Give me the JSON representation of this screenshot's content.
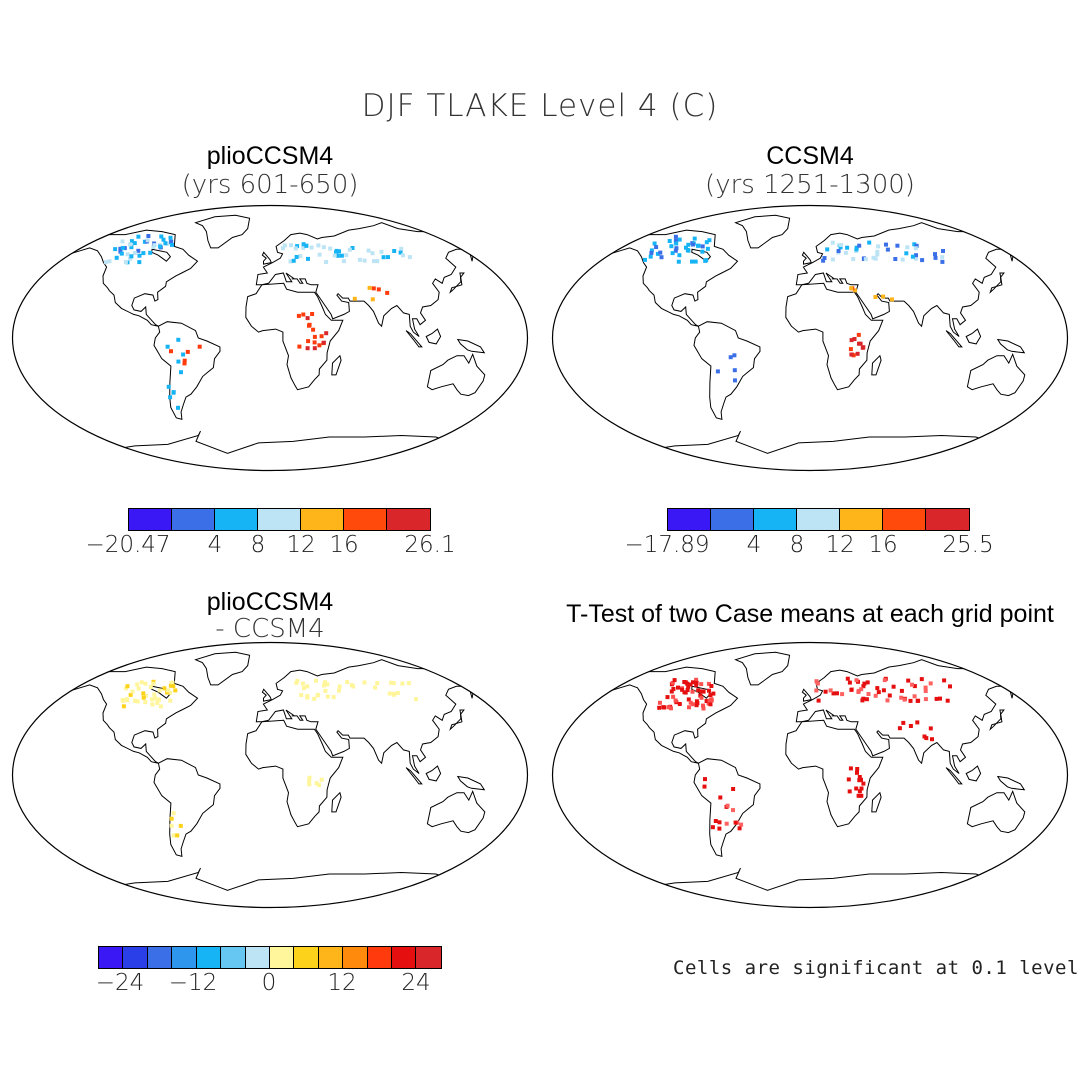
{
  "figure": {
    "title": "DJF TLAKE Level 4 (C)"
  },
  "panels": {
    "top_left": {
      "title": "plioCCSM4",
      "subtitle": "(yrs 601-650)",
      "colorbar": {
        "colors": [
          "#3a17f5",
          "#3a6fe8",
          "#17b4f5",
          "#bde4f5",
          "#fdb51a",
          "#ff4a0c",
          "#d8262b"
        ],
        "labels": [
          "-20.47",
          "4",
          "8",
          "12",
          "16",
          "26.1"
        ]
      }
    },
    "top_right": {
      "title": "CCSM4",
      "subtitle": "(yrs 1251-1300)",
      "colorbar": {
        "colors": [
          "#3a17f5",
          "#3a6fe8",
          "#17b4f5",
          "#bde4f5",
          "#fdb51a",
          "#ff4a0c",
          "#d8262b"
        ],
        "labels": [
          "-17.89",
          "4",
          "8",
          "12",
          "16",
          "25.5"
        ]
      }
    },
    "bottom_left": {
      "title": "plioCCSM4",
      "subtitle": "- CCSM4",
      "colorbar": {
        "colors": [
          "#3a17f5",
          "#2a3fe8",
          "#3a6fe8",
          "#2f96ee",
          "#17b4f5",
          "#66c8f2",
          "#bde4f5",
          "#fff59a",
          "#fdd21a",
          "#fdb51a",
          "#ff8a0c",
          "#ff3a0c",
          "#e60f10",
          "#d8262b"
        ],
        "labels": [
          "-24",
          "-12",
          "0",
          "12",
          "24"
        ]
      }
    },
    "bottom_right": {
      "title": "T-Test of two Case means at each grid point",
      "note": "Cells are significant at 0.1 level"
    }
  },
  "colors": {
    "cold": "#17b4f5",
    "cool": "#3a6fe8",
    "warm": "#fdb51a",
    "hot": "#ff3a0c",
    "diff_pos": "#fff59a",
    "sig": "#e60f10",
    "outline": "#000000"
  }
}
